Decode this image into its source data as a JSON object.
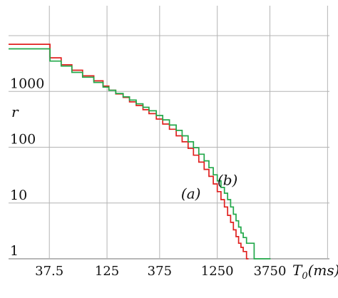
{
  "chart_data": {
    "type": "line",
    "title": "",
    "xlabel": "T",
    "xlabel_sub": "0",
    "xlabel_unit": "(ms)",
    "ylabel": "r",
    "x_scale": "log",
    "y_scale": "log",
    "xlim": [
      16,
      13000
    ],
    "ylim": [
      1,
      20000
    ],
    "x_ticks": [
      {
        "value": 37.5,
        "label": "37.5"
      },
      {
        "value": 125,
        "label": "125"
      },
      {
        "value": 375,
        "label": "375"
      },
      {
        "value": 1250,
        "label": "1250"
      },
      {
        "value": 3750,
        "label": "3750"
      }
    ],
    "x_grid": [
      37.5,
      125,
      375,
      1250,
      3750,
      12500
    ],
    "y_ticks": [
      {
        "value": 1,
        "label": "1"
      },
      {
        "value": 10,
        "label": "10"
      },
      {
        "value": 100,
        "label": "100"
      },
      {
        "value": 1000,
        "label": "1000"
      }
    ],
    "y_grid": [
      1,
      10,
      100,
      1000,
      10000
    ],
    "grid": true,
    "series": [
      {
        "name": "(a)",
        "color": "#e0201f",
        "step": true,
        "x": [
          16,
          28,
          38,
          48,
          60,
          75,
          95,
          115,
          130,
          150,
          175,
          200,
          230,
          265,
          300,
          350,
          400,
          460,
          530,
          600,
          680,
          760,
          850,
          950,
          1050,
          1150,
          1250,
          1350,
          1450,
          1550,
          1650,
          1750,
          1850,
          1950,
          2050,
          2150,
          2300,
          2400
        ],
        "y": [
          7000,
          7000,
          4000,
          3000,
          2400,
          1900,
          1550,
          1250,
          1050,
          900,
          780,
          650,
          560,
          470,
          400,
          320,
          260,
          210,
          160,
          125,
          95,
          72,
          54,
          40,
          30,
          22,
          16,
          11.5,
          8.5,
          6,
          4.5,
          3.3,
          2.5,
          1.9,
          1.6,
          1.35,
          1,
          1
        ]
      },
      {
        "name": "(b)",
        "color": "#22a84a",
        "step": true,
        "x": [
          16,
          28,
          38,
          48,
          60,
          75,
          95,
          115,
          130,
          150,
          175,
          200,
          230,
          265,
          300,
          350,
          400,
          460,
          530,
          600,
          680,
          760,
          850,
          950,
          1050,
          1150,
          1250,
          1350,
          1450,
          1550,
          1650,
          1750,
          1850,
          1950,
          2050,
          2150,
          2300,
          2500,
          2700,
          3000,
          3300,
          3800
        ],
        "y": [
          5800,
          5800,
          3500,
          2850,
          2200,
          1800,
          1450,
          1200,
          1050,
          920,
          800,
          700,
          600,
          520,
          450,
          370,
          310,
          250,
          200,
          160,
          125,
          98,
          75,
          57,
          43,
          32,
          25,
          19,
          15,
          11.5,
          8.5,
          6.3,
          4.8,
          3.7,
          2.9,
          2.4,
          1.9,
          1.9,
          1.0,
          1.0,
          1.0,
          1.0
        ]
      }
    ],
    "annotations": [
      {
        "text": "(a)",
        "x": 720,
        "y": 12
      },
      {
        "text": "(b)",
        "x": 1550,
        "y": 21
      }
    ]
  }
}
